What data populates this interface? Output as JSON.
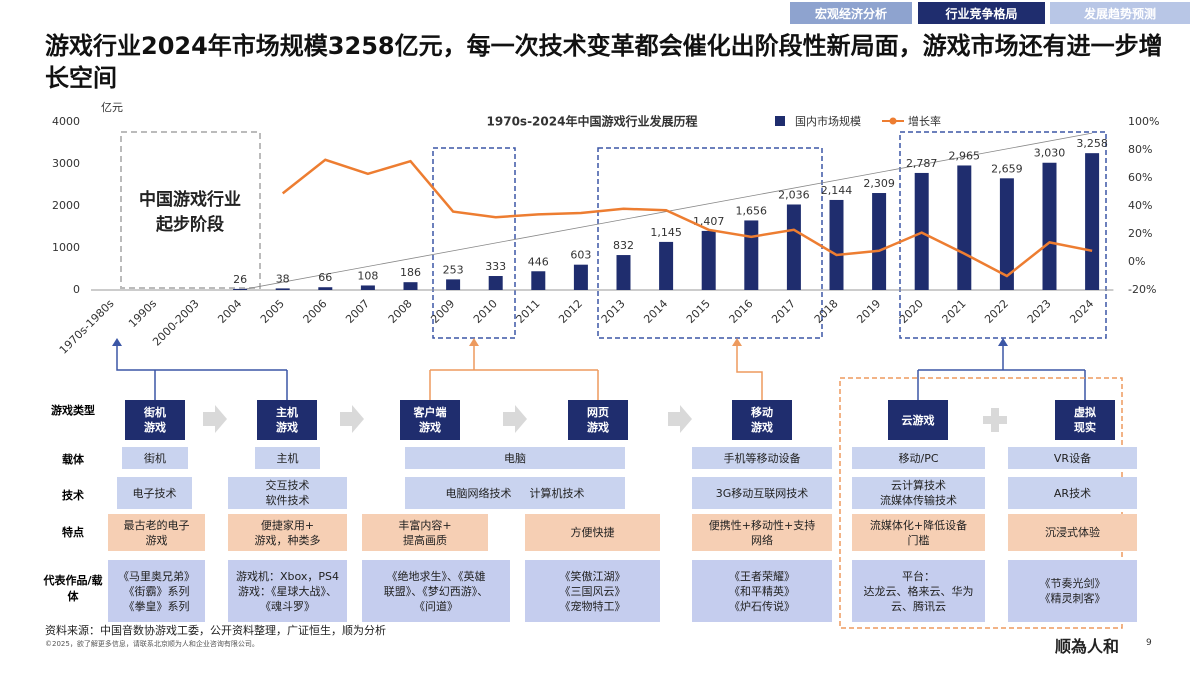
{
  "header": {
    "tabs": [
      "宏观经济分析",
      "行业竞争格局",
      "发展趋势预测"
    ],
    "title": "游戏行业2024年市场规模3258亿元，每一次技术变革都会催化出阶段性新局面，游戏市场还有进一步增长空间"
  },
  "chart_data": {
    "type": "bar",
    "title": "1970s-2024年中国游戏行业发展历程",
    "y_unit": "亿元",
    "categories": [
      "1970s-1980s",
      "1990s",
      "2000-2003",
      "2004",
      "2005",
      "2006",
      "2007",
      "2008",
      "2009",
      "2010",
      "2011",
      "2012",
      "2013",
      "2014",
      "2015",
      "2016",
      "2017",
      "2018",
      "2019",
      "2020",
      "2021",
      "2022",
      "2023",
      "2024"
    ],
    "series": [
      {
        "name": "国内市场规模",
        "color": "#1f2d6e",
        "values": [
          null,
          null,
          null,
          26,
          38,
          66,
          108,
          186,
          253,
          333,
          446,
          603,
          832,
          1145,
          1407,
          1656,
          2036,
          2144,
          2309,
          2787,
          2965,
          2659,
          3030,
          3258
        ],
        "value_labels": [
          null,
          null,
          null,
          "26",
          "38",
          "66",
          "108",
          "186",
          "253",
          "333",
          "446",
          "603",
          "832",
          "1,145",
          "1,407",
          "1,656",
          "2,036",
          "2,144",
          "2,309",
          "2,787",
          "2,965",
          "2,659",
          "3,030",
          "3,258"
        ]
      },
      {
        "name": "增长率",
        "type": "line",
        "axis": "y2",
        "color": "#ed7d31",
        "values": [
          null,
          null,
          null,
          null,
          49,
          73,
          63,
          72,
          36,
          32,
          34,
          35,
          38,
          37,
          23,
          18,
          23,
          5,
          8,
          21,
          6,
          -10,
          14,
          8
        ]
      }
    ],
    "ylim": [
      0,
      4000
    ],
    "yticks": [
      0,
      1000,
      2000,
      3000,
      4000
    ],
    "y2lim": [
      -20,
      100
    ],
    "y2ticks": [
      {
        "value": -20,
        "label": "-20%"
      },
      {
        "value": 0,
        "label": "0%"
      },
      {
        "value": 20,
        "label": "20%"
      },
      {
        "value": 40,
        "label": "40%"
      },
      {
        "value": 60,
        "label": "60%"
      },
      {
        "value": 80,
        "label": "80%"
      },
      {
        "value": 100,
        "label": "100%"
      }
    ],
    "annotation": [
      "中国游戏行业",
      "起步阶段"
    ]
  },
  "diagram": {
    "row_labels": [
      "游戏类型",
      "载体",
      "技术",
      "特点",
      "代表作品/载体"
    ],
    "types": [
      [
        "街机",
        "游戏"
      ],
      [
        "主机",
        "游戏"
      ],
      [
        "客户端",
        "游戏"
      ],
      [
        "网页",
        "游戏"
      ],
      [
        "移动",
        "游戏"
      ],
      [
        "云游戏"
      ],
      [
        "虚拟",
        "现实"
      ]
    ],
    "carriers": [
      "街机",
      "主机",
      "电脑",
      "手机等移动设备",
      "移动/PC",
      "VR设备"
    ],
    "tech": [
      [
        "电子技术"
      ],
      [
        "交互技术",
        "软件技术"
      ],
      [
        "电脑网络技术",
        "计算机技术"
      ],
      [
        "3G移动互联网技术"
      ],
      [
        "云计算技术",
        "流媒体传输技术"
      ],
      [
        "AR技术"
      ]
    ],
    "features": [
      [
        "最古老的电子",
        "游戏"
      ],
      [
        "便捷家用+",
        "游戏，种类多"
      ],
      [
        "丰富内容+",
        "提高画质"
      ],
      [
        "方便快捷"
      ],
      [
        "便携性+移动性+支持",
        "网络"
      ],
      [
        "流媒体化+降低设备",
        "门槛"
      ],
      [
        "沉浸式体验"
      ]
    ],
    "works": [
      [
        "《马里奥兄弟》",
        "《街霸》系列",
        "《拳皇》系列"
      ],
      [
        "游戏机：Xbox，PS4",
        "游戏：《星球大战》、",
        "《魂斗罗》"
      ],
      [
        "《绝地求生》、《英雄",
        "联盟》、《梦幻西游》、",
        "《问道》"
      ],
      [
        "《笑傲江湖》",
        "《三国风云》",
        "《宠物特工》"
      ],
      [
        "《王者荣耀》",
        "《和平精英》",
        "《炉石传说》"
      ],
      [
        "平台：",
        "达龙云、格来云、华为",
        "云、腾讯云"
      ],
      [
        "《节奏光剑》",
        "《精灵刺客》"
      ]
    ]
  },
  "footer": {
    "source": "资料来源：中国音数协游戏工委，公开资料整理，广证恒生，顺为分析",
    "copyright": "©2025，欲了解更多信息，请联系北京顺为人和企业咨询有限公司。",
    "logo": "顺為人和",
    "page": "9"
  }
}
